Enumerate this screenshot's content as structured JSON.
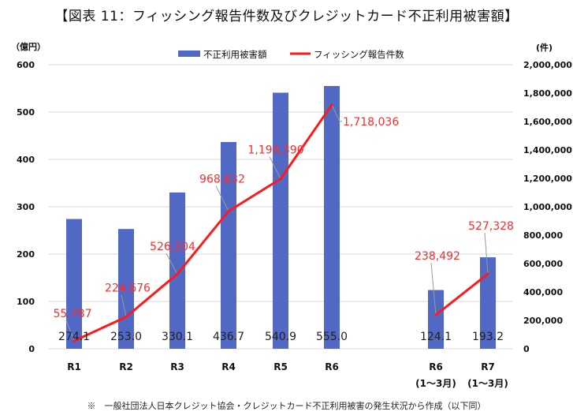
{
  "title": "【図表 11：フィッシング報告件数及びクレジットカード不正利用被害額】",
  "note": "※　一般社団法人日本クレジット協会・クレジットカード不正利用被害の発生状況から作成（以下同）",
  "colors": {
    "bar": "#5168c4",
    "line": "#ff1a1a",
    "line_label": "#ff2a2a",
    "grid": "#d9d9d9"
  },
  "chart_data": {
    "type": "bar+line",
    "title": "図表 11：フィッシング報告件数及びクレジットカード不正利用被害額",
    "categories": [
      "R1",
      "R2",
      "R3",
      "R4",
      "R5",
      "R6",
      "R6\n(1〜3月)",
      "R7\n(1〜3月)"
    ],
    "category_lines": [
      [
        "R1"
      ],
      [
        "R2"
      ],
      [
        "R3"
      ],
      [
        "R4"
      ],
      [
        "R5"
      ],
      [
        "R6"
      ],
      [
        "R6",
        "(1〜3月)"
      ],
      [
        "R7",
        "(1〜3月)"
      ]
    ],
    "gap_after_index": 5,
    "series": [
      {
        "name": "不正利用被害額",
        "type": "bar",
        "axis": "left",
        "values": [
          274.1,
          253.0,
          330.1,
          436.7,
          540.9,
          555.0,
          124.1,
          193.2
        ],
        "labels": [
          "274.1",
          "253.0",
          "330.1",
          "436.7",
          "540.9",
          "555.0",
          "124.1",
          "193.2"
        ]
      },
      {
        "name": "フィッシング報告件数",
        "type": "line",
        "axis": "right",
        "segments": [
          [
            0,
            5
          ],
          [
            6,
            7
          ]
        ],
        "values": [
          55787,
          224676,
          526504,
          968832,
          1196390,
          1718036,
          238492,
          527328
        ],
        "labels": [
          "55,787",
          "224,676",
          "526,504",
          "968,832",
          "1,196,390",
          "1,718,036",
          "238,492",
          "527,328"
        ]
      }
    ],
    "y_left": {
      "unit": "（億円）",
      "range": [
        0,
        600
      ],
      "ticks": [
        0,
        100,
        200,
        300,
        400,
        500,
        600
      ],
      "tick_labels": [
        "0",
        "100",
        "200",
        "300",
        "400",
        "500",
        "600"
      ]
    },
    "y_right": {
      "unit": "(件)",
      "range": [
        0,
        2000000
      ],
      "ticks": [
        0,
        200000,
        400000,
        600000,
        800000,
        1000000,
        1200000,
        1400000,
        1600000,
        1800000,
        2000000
      ],
      "tick_labels": [
        "0",
        "200,000",
        "400,000",
        "600,000",
        "800,000",
        "1,000,000",
        "1,200,000",
        "1,400,000",
        "1,600,000",
        "1,800,000",
        "2,000,000"
      ]
    },
    "grid": true,
    "legend": {
      "position": "top-center",
      "entries": [
        "不正利用被害額",
        "フィッシング報告件数"
      ]
    }
  }
}
